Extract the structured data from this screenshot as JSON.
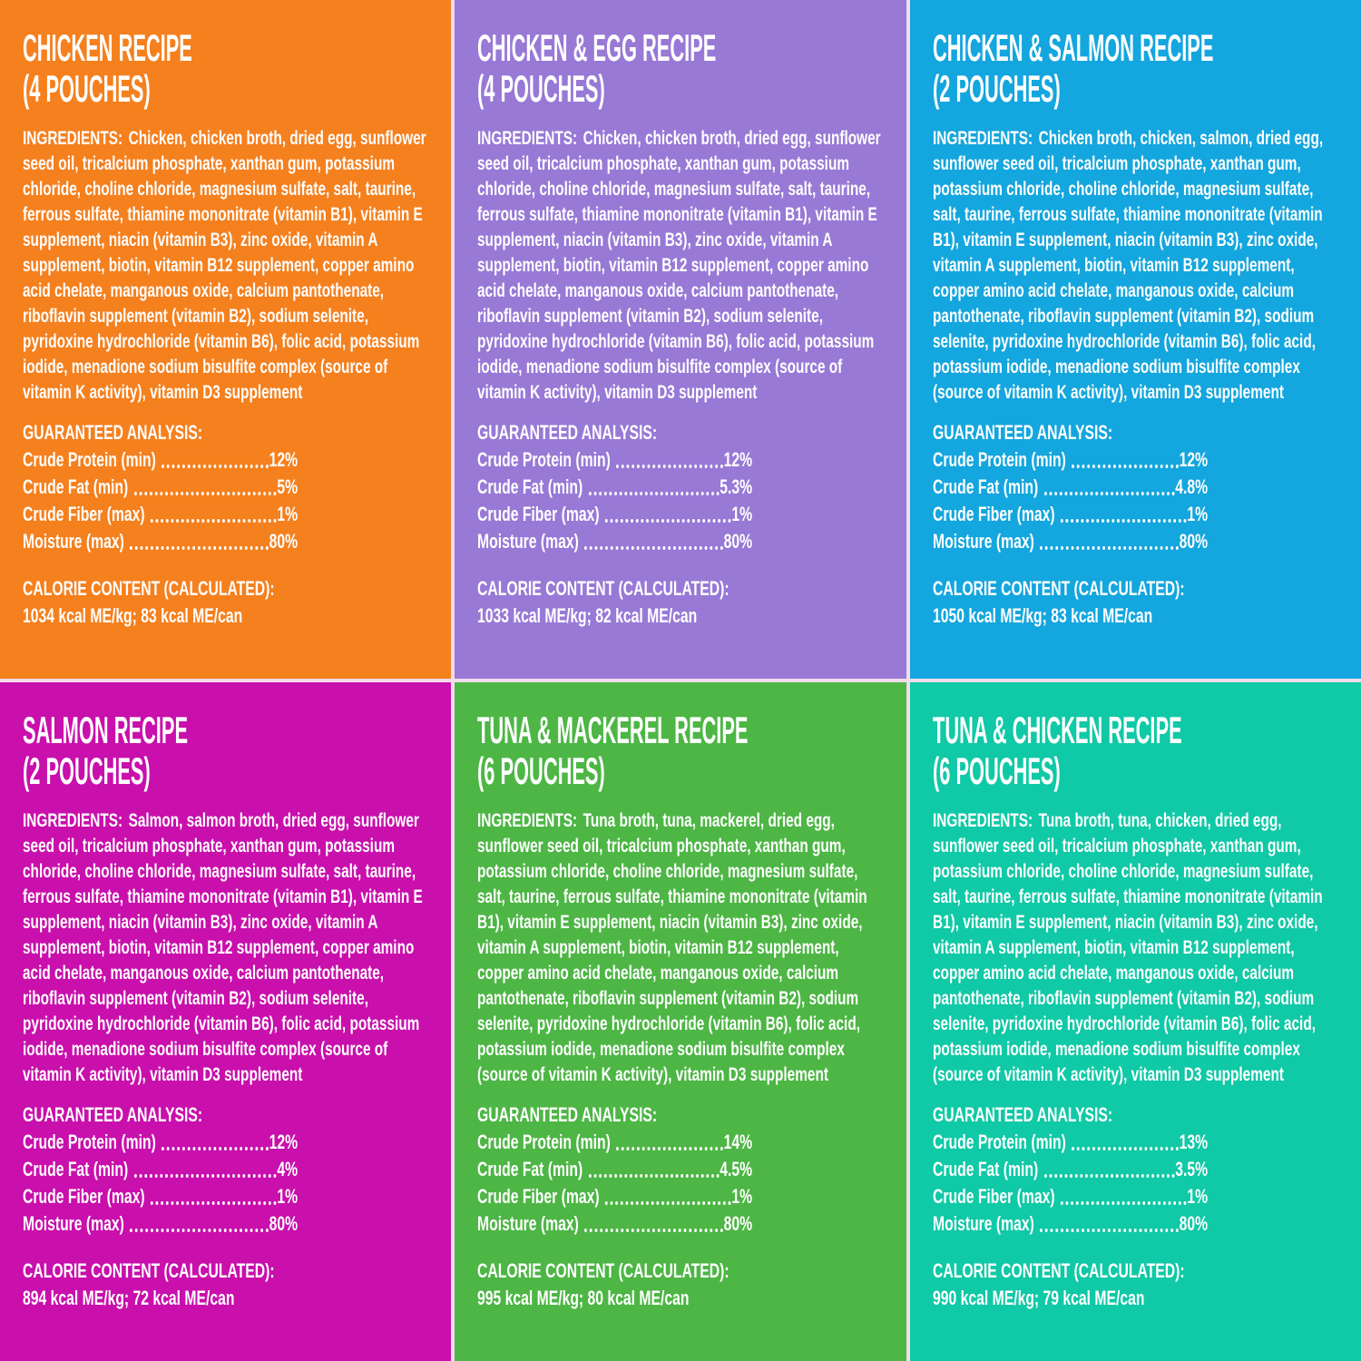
{
  "page": {
    "divider_color": "#f2dcea",
    "text_color": "#ffffff"
  },
  "panels": [
    {
      "id": "chicken",
      "bg": "#F5801E",
      "title_line1": "CHICKEN RECIPE",
      "title_line2": "(4 POUCHES)",
      "ingredients_label": "INGREDIENTS:",
      "ingredients_text": "Chicken, chicken broth, dried egg, sunflower seed oil, tricalcium phosphate, xanthan gum, potassium chloride, choline chloride, magnesium sulfate, salt, taurine, ferrous sulfate, thiamine mononitrate (vitamin B1), vitamin E supplement, niacin (vitamin B3), zinc oxide, vitamin A supplement, biotin, vitamin B12 supplement, copper amino acid chelate, manganous oxide, calcium pantothenate, riboflavin supplement (vitamin B2), sodium selenite, pyridoxine hydrochloride (vitamin B6), folic acid, potassium iodide, menadione sodium bisulfite complex (source of vitamin K activity), vitamin D3 supplement",
      "analysis_label": "GUARANTEED ANALYSIS:",
      "analysis": [
        {
          "label": "Crude Protein (min)",
          "value": "12%"
        },
        {
          "label": "Crude Fat (min)",
          "value": "5%"
        },
        {
          "label": "Crude Fiber (max)",
          "value": "1%"
        },
        {
          "label": "Moisture (max)",
          "value": "80%"
        }
      ],
      "calorie_label": "CALORIE CONTENT (CALCULATED):",
      "calorie_value": "1034 kcal ME/kg; 83 kcal ME/can"
    },
    {
      "id": "chicken-egg",
      "bg": "#9879D6",
      "title_line1": "CHICKEN & EGG RECIPE",
      "title_line2": "(4 POUCHES)",
      "ingredients_label": "INGREDIENTS:",
      "ingredients_text": "Chicken, chicken broth, dried egg, sunflower seed oil, tricalcium phosphate, xanthan gum, potassium chloride, choline chloride, magnesium sulfate, salt, taurine, ferrous sulfate, thiamine mononitrate (vitamin B1), vitamin E supplement, niacin (vitamin B3), zinc oxide, vitamin A supplement, biotin, vitamin B12 supplement, copper amino acid chelate, manganous oxide, calcium pantothenate, riboflavin supplement (vitamin B2), sodium selenite, pyridoxine hydrochloride (vitamin B6), folic acid, potassium iodide, menadione sodium bisulfite complex (source of vitamin K activity), vitamin D3 supplement",
      "analysis_label": "GUARANTEED ANALYSIS:",
      "analysis": [
        {
          "label": "Crude Protein (min)",
          "value": "12%"
        },
        {
          "label": "Crude Fat (min)",
          "value": "5.3%"
        },
        {
          "label": "Crude Fiber (max)",
          "value": "1%"
        },
        {
          "label": "Moisture (max)",
          "value": "80%"
        }
      ],
      "calorie_label": "CALORIE CONTENT (CALCULATED):",
      "calorie_value": "1033 kcal ME/kg; 82 kcal ME/can"
    },
    {
      "id": "chicken-salmon",
      "bg": "#14A6DE",
      "title_line1": "CHICKEN & SALMON RECIPE",
      "title_line2": "(2 POUCHES)",
      "ingredients_label": "INGREDIENTS:",
      "ingredients_text": "Chicken broth, chicken, salmon, dried egg, sunflower seed oil, tricalcium phosphate, xanthan gum, potassium chloride, choline chloride, magnesium sulfate, salt, taurine, ferrous sulfate, thiamine mononitrate (vitamin B1), vitamin E supplement, niacin (vitamin B3), zinc oxide, vitamin A supplement, biotin, vitamin B12 supplement, copper amino acid chelate, manganous oxide, calcium pantothenate, riboflavin supplement (vitamin B2), sodium selenite, pyridoxine hydrochloride (vitamin B6), folic acid, potassium iodide, menadione sodium bisulfite complex (source of vitamin K activity), vitamin D3 supplement",
      "analysis_label": "GUARANTEED ANALYSIS:",
      "analysis": [
        {
          "label": "Crude Protein (min)",
          "value": "12%"
        },
        {
          "label": "Crude Fat (min)",
          "value": "4.8%"
        },
        {
          "label": "Crude Fiber (max)",
          "value": "1%"
        },
        {
          "label": "Moisture (max)",
          "value": "80%"
        }
      ],
      "calorie_label": "CALORIE CONTENT (CALCULATED):",
      "calorie_value": "1050 kcal ME/kg; 83 kcal ME/can"
    },
    {
      "id": "salmon",
      "bg": "#C90FAC",
      "title_line1": "SALMON RECIPE",
      "title_line2": "(2 POUCHES)",
      "ingredients_label": "INGREDIENTS:",
      "ingredients_text": "Salmon, salmon broth, dried egg, sunflower seed oil, tricalcium phosphate, xanthan gum, potassium chloride, choline chloride, magnesium sulfate, salt, taurine, ferrous sulfate, thiamine mononitrate (vitamin B1), vitamin E supplement, niacin (vitamin B3), zinc oxide, vitamin A supplement, biotin, vitamin B12 supplement, copper amino acid chelate, manganous oxide, calcium pantothenate, riboflavin supplement (vitamin B2), sodium selenite, pyridoxine hydrochloride (vitamin B6), folic acid, potassium iodide, menadione sodium bisulfite complex (source of vitamin K activity), vitamin D3 supplement",
      "analysis_label": "GUARANTEED ANALYSIS:",
      "analysis": [
        {
          "label": "Crude Protein (min)",
          "value": "12%"
        },
        {
          "label": "Crude Fat (min)",
          "value": "4%"
        },
        {
          "label": "Crude Fiber (max)",
          "value": "1%"
        },
        {
          "label": "Moisture (max)",
          "value": "80%"
        }
      ],
      "calorie_label": "CALORIE CONTENT (CALCULATED):",
      "calorie_value": "894 kcal ME/kg; 72 kcal ME/can"
    },
    {
      "id": "tuna-mackerel",
      "bg": "#4DB645",
      "title_line1": "TUNA & MACKEREL RECIPE",
      "title_line2": "(6 POUCHES)",
      "ingredients_label": "INGREDIENTS:",
      "ingredients_text": "Tuna broth, tuna, mackerel, dried egg, sunflower seed oil, tricalcium phosphate, xanthan gum, potassium chloride, choline chloride, magnesium sulfate, salt, taurine, ferrous sulfate, thiamine mononitrate (vitamin B1), vitamin E supplement, niacin (vitamin B3), zinc oxide, vitamin A supplement, biotin, vitamin B12 supplement, copper amino acid chelate, manganous oxide, calcium pantothenate, riboflavin supplement (vitamin B2), sodium selenite, pyridoxine hydrochloride (vitamin B6), folic acid, potassium iodide, menadione sodium bisulfite complex (source of vitamin K activity), vitamin D3 supplement",
      "analysis_label": "GUARANTEED ANALYSIS:",
      "analysis": [
        {
          "label": "Crude Protein (min)",
          "value": "14%"
        },
        {
          "label": "Crude Fat (min)",
          "value": "4.5%"
        },
        {
          "label": "Crude Fiber (max)",
          "value": "1%"
        },
        {
          "label": "Moisture (max)",
          "value": "80%"
        }
      ],
      "calorie_label": "CALORIE CONTENT (CALCULATED):",
      "calorie_value": "995 kcal ME/kg; 80 kcal ME/can"
    },
    {
      "id": "tuna-chicken",
      "bg": "#10C9A6",
      "title_line1": "TUNA & CHICKEN RECIPE",
      "title_line2": "(6 POUCHES)",
      "ingredients_label": "INGREDIENTS:",
      "ingredients_text": "Tuna broth, tuna, chicken, dried egg, sunflower seed oil, tricalcium phosphate, xanthan gum, potassium chloride, choline chloride, magnesium sulfate, salt, taurine, ferrous sulfate, thiamine mononitrate (vitamin B1), vitamin E supplement, niacin (vitamin B3), zinc oxide, vitamin A supplement, biotin, vitamin B12 supplement, copper amino acid chelate, manganous oxide, calcium pantothenate, riboflavin supplement (vitamin B2), sodium selenite, pyridoxine hydrochloride (vitamin B6), folic acid, potassium iodide, menadione sodium bisulfite complex (source of vitamin K activity), vitamin D3 supplement",
      "analysis_label": "GUARANTEED ANALYSIS:",
      "analysis": [
        {
          "label": "Crude Protein (min)",
          "value": "13%"
        },
        {
          "label": "Crude Fat (min)",
          "value": "3.5%"
        },
        {
          "label": "Crude Fiber (max)",
          "value": "1%"
        },
        {
          "label": "Moisture (max)",
          "value": "80%"
        }
      ],
      "calorie_label": "CALORIE CONTENT (CALCULATED):",
      "calorie_value": "990 kcal ME/kg; 79 kcal ME/can"
    }
  ]
}
